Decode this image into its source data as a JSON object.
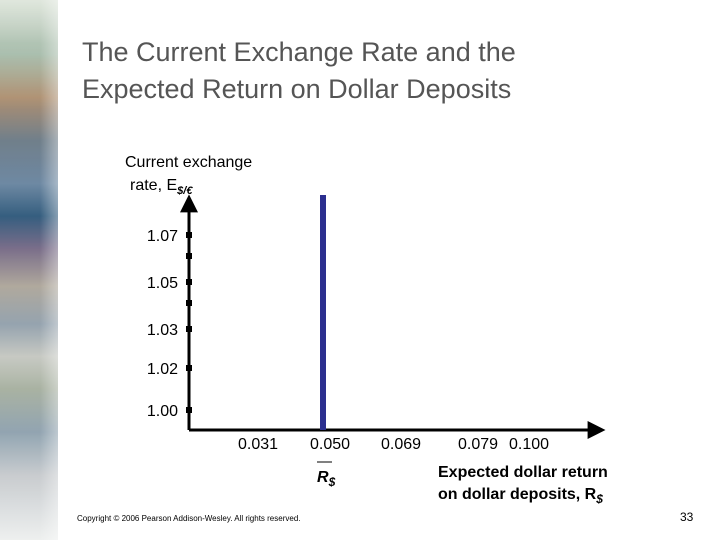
{
  "slide": {
    "title_line1": "The Current Exchange Rate and the",
    "title_line2": "Expected Return on Dollar Deposits",
    "footer": "Copyright © 2006 Pearson Addison-Wesley. All rights reserved.",
    "page_number": "33"
  },
  "colors": {
    "title": "#555555",
    "return_line": "#2b2f8f",
    "axis": "#000000"
  },
  "chart_data": {
    "type": "line",
    "ylabel_line1": "Current exchange",
    "ylabel_line2": "rate, E",
    "ylabel_subscript": "$/€",
    "xlabel_line1": "Expected dollar return",
    "xlabel_line2": "on dollar deposits, R",
    "xlabel_subscript": "$",
    "y_ticks": [
      "1.07",
      "1.05",
      "1.03",
      "1.02",
      "1.00"
    ],
    "y_tick_values": [
      1.07,
      1.05,
      1.03,
      1.02,
      1.0
    ],
    "y_minor_ticks": [
      1.06,
      1.04
    ],
    "x_ticks": [
      "0.031",
      "0.050",
      "0.069",
      "0.079",
      "0.100"
    ],
    "series": [
      {
        "label": "R",
        "label_subscript": "$",
        "type": "vertical",
        "x": 0.05
      }
    ]
  }
}
